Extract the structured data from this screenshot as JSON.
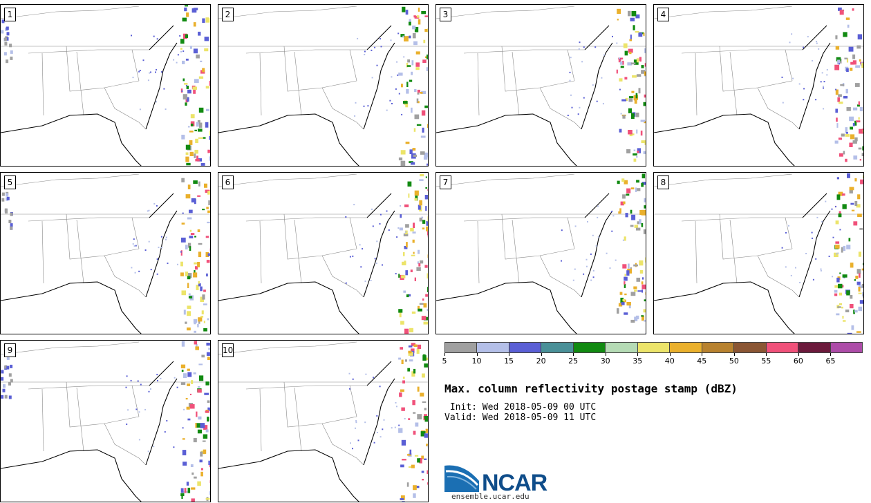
{
  "panels": [
    {
      "label": "1"
    },
    {
      "label": "2"
    },
    {
      "label": "3"
    },
    {
      "label": "4"
    },
    {
      "label": "5"
    },
    {
      "label": "6"
    },
    {
      "label": "7"
    },
    {
      "label": "8"
    },
    {
      "label": "9"
    },
    {
      "label": "10"
    }
  ],
  "colorbar": {
    "colors": [
      "#a0a0a0",
      "#b4bfe8",
      "#5a5fd5",
      "#4a9098",
      "#118a11",
      "#b5dbb5",
      "#ece46a",
      "#eab02c",
      "#b8822f",
      "#8b5634",
      "#f0517a",
      "#6c1a3c",
      "#ad4ca8"
    ],
    "ticks": [
      "5",
      "10",
      "15",
      "20",
      "25",
      "30",
      "35",
      "40",
      "45",
      "50",
      "55",
      "60",
      "65"
    ]
  },
  "title": "Max. column reflectivity postage stamp (dBZ)",
  "init": " Init: Wed 2018-05-09 00 UTC",
  "valid": "Valid: Wed 2018-05-09 11 UTC",
  "logo": {
    "text": "NCAR",
    "url": "ensemble.ucar.edu"
  }
}
